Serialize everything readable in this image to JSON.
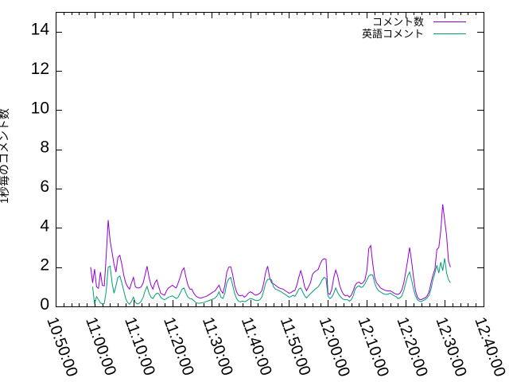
{
  "chart_data": {
    "type": "line",
    "title": "",
    "ylabel": "1秒毎のコメント数",
    "ylim": [
      0,
      15
    ],
    "yticks": [
      0,
      2,
      4,
      6,
      8,
      10,
      12,
      14
    ],
    "xlim_time": [
      "10:50:00",
      "12:40:00"
    ],
    "xticks": [
      "10:50:00",
      "11:00:00",
      "11:10:00",
      "11:20:00",
      "11:30:00",
      "11:40:00",
      "11:50:00",
      "12:00:00",
      "12:10:00",
      "12:20:00",
      "12:30:00",
      "12:40:00"
    ],
    "x_minor_step_seconds": 120,
    "grid": false,
    "legend_position": "top-right-inside",
    "series": [
      {
        "name": "コメント数",
        "color": "#9400d3",
        "start": "10:59:00",
        "step_seconds": 30,
        "values": [
          2.0,
          1.2,
          1.9,
          1.0,
          0.92,
          1.75,
          1.07,
          1.05,
          2.6,
          4.4,
          3.35,
          2.75,
          2.15,
          1.75,
          2.5,
          2.6,
          2.15,
          1.6,
          1.2,
          1.0,
          0.88,
          1.2,
          1.48,
          1.0,
          0.94,
          0.94,
          1.0,
          1.2,
          1.62,
          2.05,
          1.48,
          1.08,
          0.88,
          1.2,
          1.35,
          1.0,
          0.67,
          0.61,
          0.57,
          0.8,
          0.94,
          1.0,
          1.08,
          1.0,
          0.94,
          1.2,
          1.48,
          1.82,
          1.96,
          1.48,
          1.08,
          0.88,
          0.88,
          0.67,
          0.54,
          0.47,
          0.43,
          0.43,
          0.47,
          0.5,
          0.54,
          0.6,
          0.67,
          0.74,
          0.8,
          0.94,
          1.08,
          0.8,
          0.67,
          1.08,
          1.75,
          2.0,
          2.02,
          1.62,
          1.08,
          0.74,
          0.57,
          0.54,
          0.57,
          0.47,
          0.54,
          0.67,
          0.74,
          0.7,
          0.61,
          0.57,
          0.61,
          0.67,
          0.8,
          1.2,
          1.75,
          2.05,
          1.48,
          1.2,
          1.15,
          1.08,
          1.0,
          0.94,
          0.9,
          0.88,
          0.8,
          0.74,
          0.67,
          0.7,
          0.78,
          0.81,
          1.08,
          1.48,
          1.82,
          1.48,
          1.0,
          0.8,
          1.0,
          1.2,
          1.62,
          1.75,
          1.82,
          1.89,
          2.16,
          2.36,
          2.43,
          2.4,
          0.67,
          0.61,
          0.88,
          1.48,
          1.85,
          1.55,
          1.08,
          0.8,
          0.61,
          0.54,
          0.57,
          0.47,
          0.57,
          0.8,
          1.08,
          1.2,
          1.24,
          1.15,
          1.2,
          1.35,
          1.82,
          2.95,
          3.1,
          2.2,
          1.48,
          1.2,
          1.08,
          0.94,
          0.88,
          0.84,
          0.8,
          0.78,
          0.8,
          0.74,
          0.67,
          0.63,
          0.61,
          0.67,
          0.84,
          1.2,
          1.75,
          2.36,
          3.0,
          2.3,
          1.48,
          0.8,
          0.47,
          0.36,
          0.34,
          0.4,
          0.43,
          0.54,
          0.74,
          1.2,
          1.6,
          1.9,
          2.9,
          3.0,
          3.85,
          5.2,
          4.4,
          3.6,
          2.3,
          2.0
        ]
      },
      {
        "name": "英語コメント",
        "color": "#009e73",
        "start": "10:59:30",
        "step_seconds": 30,
        "values": [
          1.0,
          0.12,
          0.5,
          0.35,
          0.18,
          0.12,
          0.15,
          0.8,
          2.0,
          2.05,
          1.2,
          0.67,
          1.05,
          1.48,
          1.55,
          1.2,
          0.8,
          0.4,
          0.2,
          0.11,
          0.27,
          0.47,
          0.2,
          0.13,
          0.16,
          0.27,
          0.47,
          0.8,
          1.02,
          0.67,
          0.47,
          0.4,
          0.57,
          0.67,
          0.65,
          0.47,
          0.38,
          0.34,
          0.4,
          0.47,
          0.5,
          0.54,
          0.47,
          0.4,
          0.47,
          0.67,
          0.88,
          0.94,
          0.67,
          0.47,
          0.4,
          0.38,
          0.3,
          0.2,
          0.16,
          0.16,
          0.18,
          0.2,
          0.23,
          0.27,
          0.3,
          0.34,
          0.38,
          0.43,
          0.54,
          0.74,
          0.47,
          0.4,
          0.67,
          1.2,
          1.4,
          1.48,
          1.08,
          0.67,
          0.4,
          0.27,
          0.23,
          0.27,
          0.24,
          0.27,
          0.34,
          0.4,
          0.38,
          0.34,
          0.3,
          0.3,
          0.34,
          0.47,
          0.8,
          1.2,
          1.38,
          1.38,
          1.35,
          1.0,
          0.88,
          0.84,
          0.8,
          0.74,
          0.67,
          0.61,
          0.54,
          0.47,
          0.5,
          0.57,
          0.51,
          0.67,
          0.88,
          0.94,
          0.74,
          0.54,
          0.43,
          0.54,
          0.65,
          0.74,
          0.84,
          0.92,
          1.0,
          1.15,
          1.35,
          1.48,
          1.42,
          0.54,
          0.4,
          0.47,
          0.67,
          0.94,
          0.7,
          0.54,
          0.43,
          0.36,
          0.34,
          0.34,
          0.27,
          0.34,
          0.54,
          0.88,
          1.0,
          1.05,
          0.97,
          1.0,
          1.15,
          1.35,
          1.55,
          1.62,
          1.59,
          1.2,
          0.94,
          0.8,
          0.74,
          0.67,
          0.63,
          0.61,
          0.63,
          0.67,
          0.61,
          0.54,
          0.5,
          0.4,
          0.43,
          0.54,
          0.8,
          1.2,
          1.55,
          1.75,
          1.35,
          0.88,
          0.54,
          0.34,
          0.27,
          0.24,
          0.3,
          0.34,
          0.43,
          0.57,
          0.88,
          1.35,
          1.7,
          2.1,
          1.7,
          2.25,
          1.82,
          2.45,
          1.7,
          1.35,
          1.2
        ]
      }
    ]
  }
}
